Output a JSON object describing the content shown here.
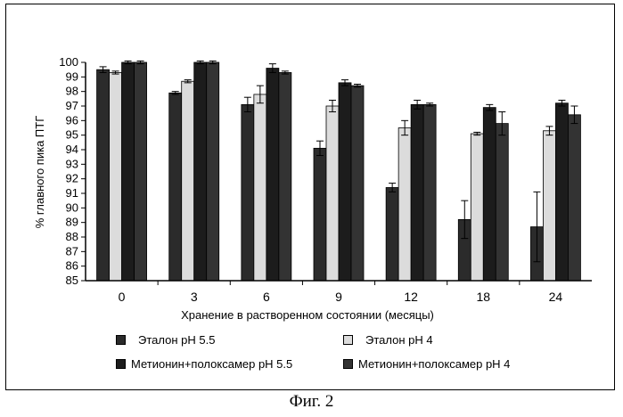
{
  "figure_caption": "Фиг. 2",
  "colors": {
    "etalon_55": "#2b2b2b",
    "etalon_4": "#dcdcdc",
    "met_55": "#1c1c1c",
    "met_4": "#333333",
    "frame": "#000000"
  },
  "chart_data": {
    "type": "bar",
    "title": "",
    "xlabel": "Хранение в растворенном состоянии (месяцы)",
    "ylabel": "% главного пика ПТГ",
    "ylim": [
      85,
      100
    ],
    "yticks": [
      85,
      86,
      87,
      88,
      89,
      90,
      91,
      92,
      93,
      94,
      95,
      96,
      97,
      98,
      99,
      100
    ],
    "categories": [
      "0",
      "3",
      "6",
      "9",
      "12",
      "18",
      "24"
    ],
    "grid": false,
    "legend_position": "bottom",
    "series": [
      {
        "name": "Эталон  pH 5.5",
        "values": [
          99.5,
          97.9,
          97.1,
          94.1,
          91.4,
          89.2,
          88.7
        ],
        "errors": [
          0.2,
          0.1,
          0.5,
          0.5,
          0.3,
          1.3,
          2.4
        ]
      },
      {
        "name": "Эталон  pH 4",
        "values": [
          99.3,
          98.7,
          97.8,
          97.0,
          95.5,
          95.1,
          95.3
        ],
        "errors": [
          0.1,
          0.1,
          0.6,
          0.4,
          0.5,
          0.1,
          0.3
        ]
      },
      {
        "name": "Метионин+полоксамер  pH 5.5",
        "values": [
          100.0,
          100.0,
          99.6,
          98.6,
          97.1,
          96.9,
          97.2
        ],
        "errors": [
          0.1,
          0.1,
          0.3,
          0.2,
          0.3,
          0.2,
          0.2
        ]
      },
      {
        "name": "Метионин+полоксамер  pH 4",
        "values": [
          100.0,
          100.0,
          99.3,
          98.4,
          97.1,
          95.8,
          96.4
        ],
        "errors": [
          0.1,
          0.1,
          0.1,
          0.1,
          0.1,
          0.8,
          0.6
        ]
      }
    ]
  }
}
